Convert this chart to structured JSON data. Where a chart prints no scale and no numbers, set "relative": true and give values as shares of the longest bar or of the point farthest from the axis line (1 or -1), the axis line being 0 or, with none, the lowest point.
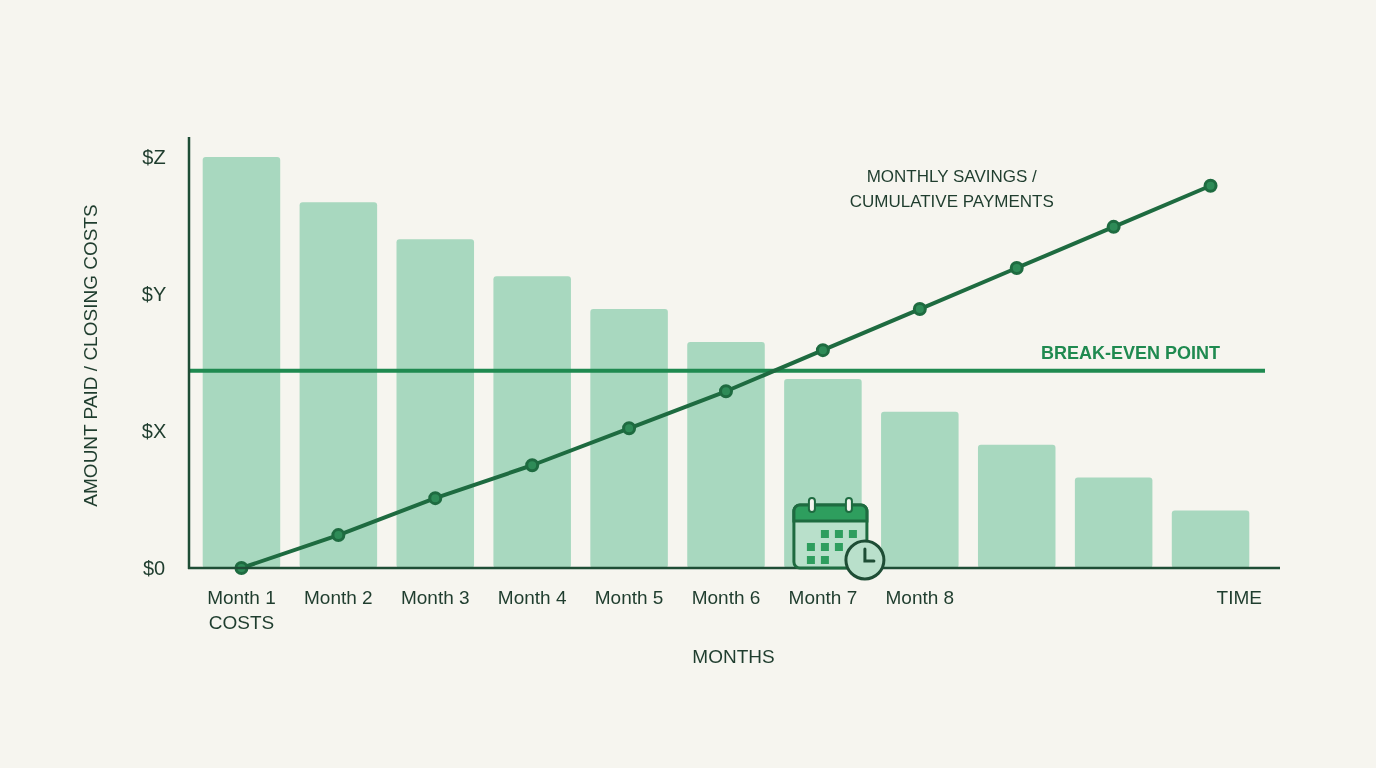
{
  "chart_data": {
    "type": "bar",
    "relative": true,
    "categories": [
      "Month 1 COSTS",
      "Month 2",
      "Month 3",
      "Month 4",
      "Month 5",
      "Month 6",
      "Month 7",
      "Month 8",
      null,
      null,
      null
    ],
    "series": [
      {
        "color": "#a8d8bf",
        "values": [
          1,
          0.89,
          0.8,
          0.71,
          0.63,
          0.55,
          0.46,
          0.38,
          0.3,
          0.22,
          0.14
        ]
      },
      {
        "type": "line",
        "name": "MONTHLY SAVINGS / CUMULATIVE PAYMENTS",
        "color": "#1e6b40",
        "values": [
          0,
          0.08,
          0.17,
          0.25,
          0.34,
          0.43,
          0.53,
          0.63,
          0.73,
          0.83,
          0.93
        ]
      }
    ],
    "xlabel": "MONTHS",
    "ylabel": "AMOUNT PAID / CLOSING COSTS",
    "ref_lines": [
      {
        "axis": "y",
        "value": 0.48,
        "label": "BREAK-EVEN POINT",
        "color": "#1f8a50"
      }
    ],
    "annotations": [
      "$0",
      "$X",
      "$Y",
      "$Z",
      "TIME"
    ],
    "marker": "circle",
    "line_style": "solid"
  }
}
